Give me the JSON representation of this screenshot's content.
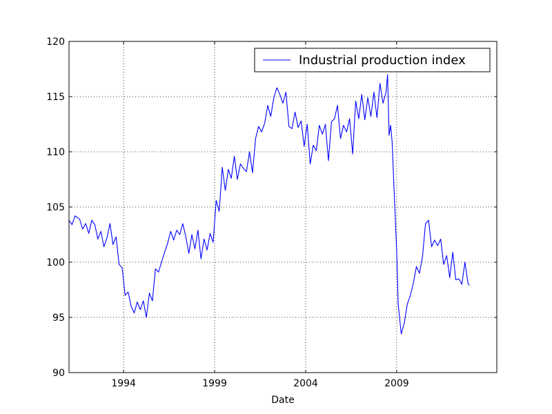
{
  "chart_data": {
    "type": "line",
    "title": "",
    "xlabel": "Date",
    "ylabel": "",
    "xlim": [
      "1991-01",
      "2014-07"
    ],
    "ylim": [
      90,
      120
    ],
    "x_ticks": [
      "1994",
      "1999",
      "2004",
      "2009"
    ],
    "y_ticks": [
      "90",
      "95",
      "100",
      "105",
      "110",
      "115",
      "120"
    ],
    "grid": true,
    "grid_style": "dotted",
    "legend_position": "upper-right",
    "series": [
      {
        "name": "Industrial production index",
        "color": "#0000ff",
        "points": [
          [
            "1991-01",
            103.8
          ],
          [
            "1991-03",
            103.4
          ],
          [
            "1991-05",
            104.2
          ],
          [
            "1991-08",
            103.9
          ],
          [
            "1991-10",
            103.0
          ],
          [
            "1991-12",
            103.5
          ],
          [
            "1992-02",
            102.6
          ],
          [
            "1992-04",
            103.8
          ],
          [
            "1992-06",
            103.4
          ],
          [
            "1992-08",
            102.1
          ],
          [
            "1992-10",
            102.8
          ],
          [
            "1992-12",
            101.4
          ],
          [
            "1993-02",
            102.2
          ],
          [
            "1993-04",
            103.5
          ],
          [
            "1993-06",
            101.6
          ],
          [
            "1993-08",
            102.3
          ],
          [
            "1993-10",
            99.8
          ],
          [
            "1993-12",
            99.5
          ],
          [
            "1994-02",
            97.0
          ],
          [
            "1994-04",
            97.3
          ],
          [
            "1994-06",
            96.0
          ],
          [
            "1994-08",
            95.4
          ],
          [
            "1994-10",
            96.4
          ],
          [
            "1994-12",
            95.7
          ],
          [
            "1995-02",
            96.5
          ],
          [
            "1995-04",
            95.0
          ],
          [
            "1995-06",
            97.2
          ],
          [
            "1995-08",
            96.5
          ],
          [
            "1995-10",
            99.4
          ],
          [
            "1995-12",
            99.1
          ],
          [
            "1996-02",
            100.0
          ],
          [
            "1996-04",
            100.9
          ],
          [
            "1996-06",
            101.7
          ],
          [
            "1996-08",
            102.8
          ],
          [
            "1996-10",
            102.0
          ],
          [
            "1996-12",
            102.9
          ],
          [
            "1997-02",
            102.5
          ],
          [
            "1997-04",
            103.5
          ],
          [
            "1997-06",
            102.3
          ],
          [
            "1997-08",
            100.8
          ],
          [
            "1997-10",
            102.5
          ],
          [
            "1997-12",
            101.2
          ],
          [
            "1998-02",
            102.9
          ],
          [
            "1998-04",
            100.3
          ],
          [
            "1998-06",
            102.1
          ],
          [
            "1998-08",
            101.1
          ],
          [
            "1998-10",
            102.6
          ],
          [
            "1998-12",
            101.8
          ],
          [
            "1999-02",
            105.6
          ],
          [
            "1999-04",
            104.6
          ],
          [
            "1999-06",
            108.6
          ],
          [
            "1999-08",
            106.5
          ],
          [
            "1999-10",
            108.4
          ],
          [
            "1999-12",
            107.6
          ],
          [
            "2000-02",
            109.6
          ],
          [
            "2000-04",
            107.5
          ],
          [
            "2000-06",
            108.9
          ],
          [
            "2000-08",
            108.5
          ],
          [
            "2000-10",
            108.2
          ],
          [
            "2000-12",
            110.0
          ],
          [
            "2001-02",
            108.1
          ],
          [
            "2001-04",
            111.2
          ],
          [
            "2001-06",
            112.3
          ],
          [
            "2001-08",
            111.8
          ],
          [
            "2001-10",
            112.6
          ],
          [
            "2001-12",
            114.2
          ],
          [
            "2002-02",
            113.2
          ],
          [
            "2002-04",
            114.9
          ],
          [
            "2002-06",
            115.8
          ],
          [
            "2002-08",
            115.2
          ],
          [
            "2002-10",
            114.4
          ],
          [
            "2002-12",
            115.4
          ],
          [
            "2003-02",
            112.3
          ],
          [
            "2003-04",
            112.1
          ],
          [
            "2003-06",
            113.6
          ],
          [
            "2003-08",
            112.2
          ],
          [
            "2003-10",
            112.8
          ],
          [
            "2003-12",
            110.5
          ],
          [
            "2004-02",
            112.5
          ],
          [
            "2004-04",
            108.9
          ],
          [
            "2004-06",
            110.6
          ],
          [
            "2004-08",
            110.1
          ],
          [
            "2004-10",
            112.4
          ],
          [
            "2004-12",
            111.6
          ],
          [
            "2005-02",
            112.5
          ],
          [
            "2005-04",
            109.2
          ],
          [
            "2005-06",
            112.7
          ],
          [
            "2005-08",
            113.0
          ],
          [
            "2005-10",
            114.2
          ],
          [
            "2005-12",
            111.2
          ],
          [
            "2006-02",
            112.4
          ],
          [
            "2006-04",
            111.8
          ],
          [
            "2006-06",
            113.0
          ],
          [
            "2006-08",
            109.8
          ],
          [
            "2006-10",
            114.6
          ],
          [
            "2006-12",
            113.0
          ],
          [
            "2007-02",
            115.2
          ],
          [
            "2007-04",
            112.9
          ],
          [
            "2007-06",
            114.9
          ],
          [
            "2007-08",
            113.2
          ],
          [
            "2007-10",
            115.4
          ],
          [
            "2007-12",
            113.1
          ],
          [
            "2008-02",
            116.2
          ],
          [
            "2008-04",
            114.4
          ],
          [
            "2008-06",
            115.4
          ],
          [
            "2008-07",
            117.0
          ],
          [
            "2008-08",
            111.5
          ],
          [
            "2008-09",
            112.4
          ],
          [
            "2008-10",
            110.9
          ],
          [
            "2008-11",
            107.5
          ],
          [
            "2009-01",
            101.0
          ],
          [
            "2009-02",
            96.2
          ],
          [
            "2009-04",
            93.5
          ],
          [
            "2009-06",
            94.5
          ],
          [
            "2009-08",
            96.2
          ],
          [
            "2009-10",
            97.0
          ],
          [
            "2009-12",
            98.1
          ],
          [
            "2010-02",
            99.6
          ],
          [
            "2010-04",
            99.0
          ],
          [
            "2010-06",
            100.5
          ],
          [
            "2010-08",
            103.5
          ],
          [
            "2010-10",
            103.8
          ],
          [
            "2010-12",
            101.4
          ],
          [
            "2011-02",
            102.0
          ],
          [
            "2011-04",
            101.5
          ],
          [
            "2011-06",
            102.1
          ],
          [
            "2011-08",
            99.8
          ],
          [
            "2011-10",
            100.6
          ],
          [
            "2011-12",
            98.6
          ],
          [
            "2012-02",
            100.9
          ],
          [
            "2012-04",
            98.4
          ],
          [
            "2012-06",
            98.5
          ],
          [
            "2012-08",
            98.0
          ],
          [
            "2012-10",
            100.0
          ],
          [
            "2012-12",
            98.1
          ],
          [
            "2013-01",
            97.9
          ]
        ]
      }
    ]
  },
  "legend": {
    "label": "Industrial production index"
  }
}
